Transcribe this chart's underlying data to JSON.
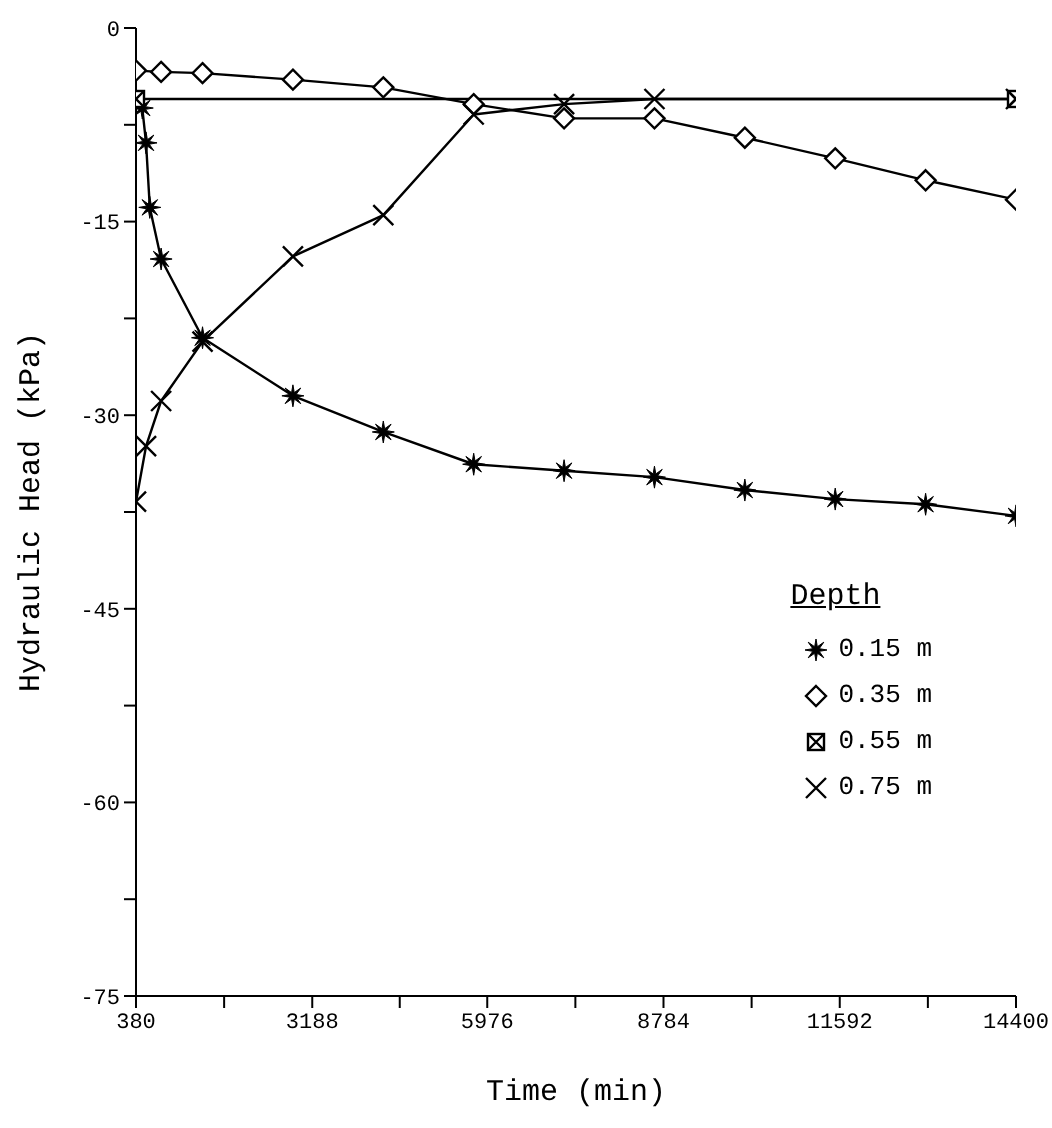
{
  "chart_data": {
    "type": "line",
    "xlabel": "Time (min)",
    "ylabel": "Hydraulic Head (kPa)",
    "legend_title": "Depth",
    "legend": "right",
    "grid": false,
    "xlim": [
      380,
      14400
    ],
    "xticks": [
      380,
      {
        "value": 1784,
        "label": null
      },
      3188,
      {
        "value": 4582,
        "label": null
      },
      5976,
      {
        "value": 7380,
        "label": null
      },
      8784,
      {
        "value": 10188,
        "label": null
      },
      11592,
      {
        "value": 12996,
        "label": null
      },
      14400
    ],
    "ylim": [
      -75,
      0
    ],
    "yticks": [
      -75,
      {
        "value": -67.5,
        "label": null
      },
      -60,
      {
        "value": -52.5,
        "label": null
      },
      -45,
      {
        "value": -37.5,
        "label": null
      },
      -30,
      {
        "value": -22.5,
        "label": null
      },
      -15,
      {
        "value": -7.5,
        "label": null
      },
      0
    ],
    "series": [
      {
        "name": "0.15 m",
        "color": "#000000",
        "marker": "star",
        "x": [
          480,
          540,
          600,
          780,
          1440,
          2880,
          4320,
          5760,
          7200,
          8640,
          10080,
          11520,
          12960,
          14400
        ],
        "values": [
          -6.2,
          -8.9,
          -13.9,
          -17.9,
          -24.0,
          -28.5,
          -31.3,
          -33.8,
          -34.3,
          -34.8,
          -35.8,
          -36.5,
          -36.9,
          -37.8
        ]
      },
      {
        "name": "0.35 m",
        "color": "#000000",
        "marker": "diamond",
        "x": [
          380,
          780,
          1440,
          2880,
          4320,
          5760,
          7200,
          8640,
          10080,
          11520,
          12960,
          14400
        ],
        "values": [
          -3.3,
          -3.4,
          -3.5,
          -4.0,
          -4.6,
          -5.9,
          -7.0,
          -7.0,
          -8.5,
          -10.1,
          -11.8,
          -13.3
        ]
      },
      {
        "name": "0.55 m",
        "color": "#000000",
        "marker": "square",
        "x": [
          380,
          14400
        ],
        "values": [
          -5.5,
          -5.5
        ]
      },
      {
        "name": "0.75 m",
        "color": "#000000",
        "marker": "cross",
        "x": [
          380,
          540,
          780,
          1440,
          2880,
          4320,
          5760,
          7200,
          8640,
          14400
        ],
        "values": [
          -36.7,
          -32.4,
          -28.9,
          -24.3,
          -17.7,
          -14.5,
          -6.7,
          -5.9,
          -5.5,
          -5.5
        ]
      }
    ]
  }
}
